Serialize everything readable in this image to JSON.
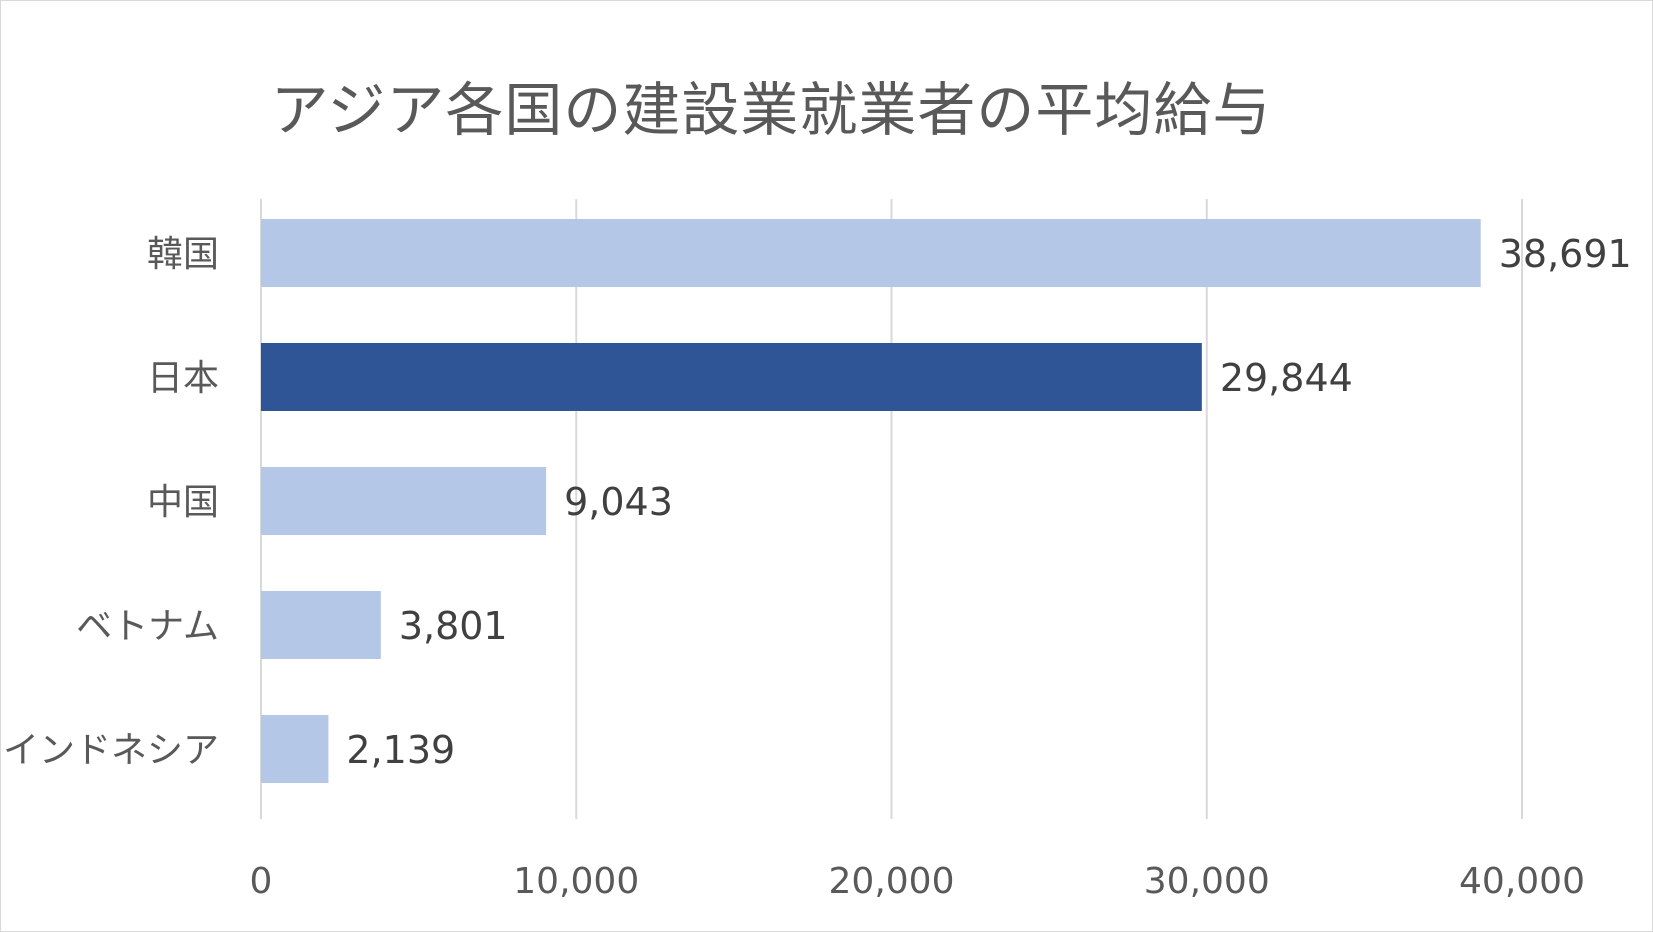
{
  "chart_data": {
    "type": "bar",
    "orientation": "horizontal",
    "title": "アジア各国の建設業就業者の平均給与",
    "categories": [
      "韓国",
      "日本",
      "中国",
      "ベトナム",
      "インドネシア"
    ],
    "values": [
      38691,
      29844,
      9043,
      3801,
      2139
    ],
    "value_labels": [
      "38,691",
      "29,844",
      "9,043",
      "3,801",
      "2,139"
    ],
    "xlim": [
      0,
      40000
    ],
    "xticks": [
      0,
      10000,
      20000,
      30000,
      40000
    ],
    "xtick_labels": [
      "0",
      "10,000",
      "20,000",
      "30,000",
      "40,000"
    ],
    "grid": "vertical",
    "legend": "none",
    "colors": {
      "default_bar": "#b4c7e7",
      "highlight_bar": "#2f5597",
      "grid": "#d9d9d9",
      "text": "#595959"
    },
    "highlight_category": "日本"
  }
}
